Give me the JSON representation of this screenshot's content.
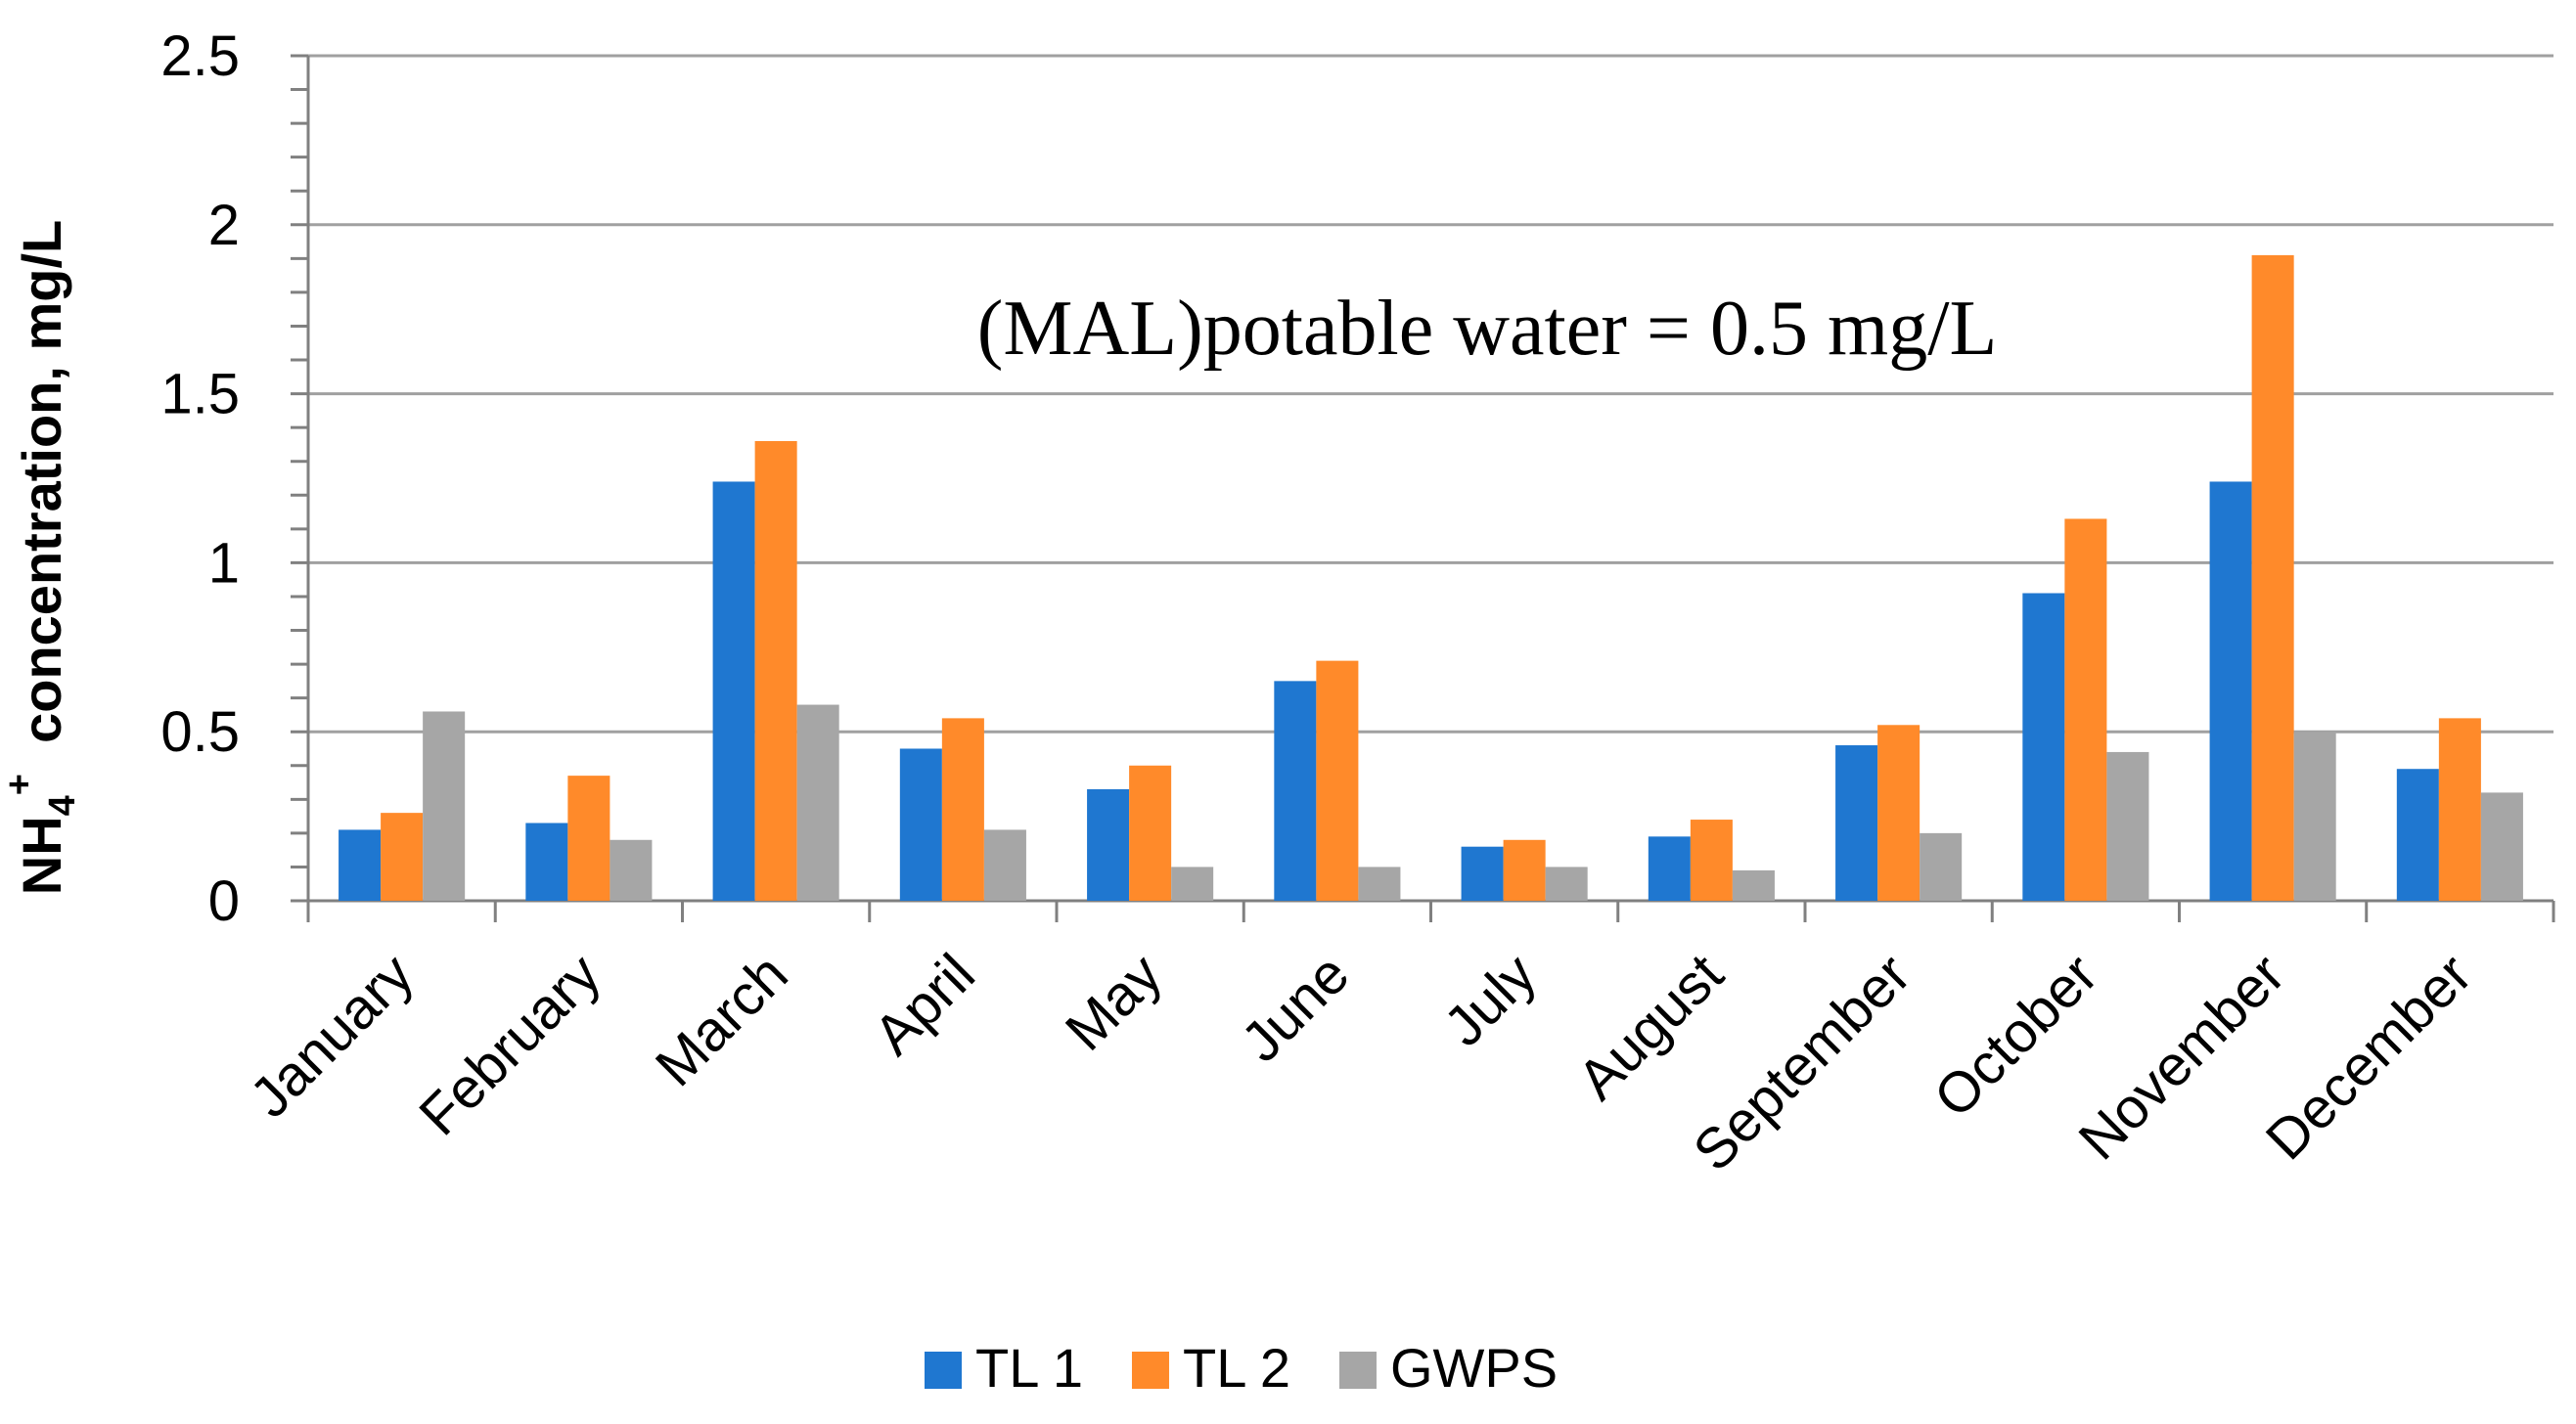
{
  "chart_data": {
    "type": "bar",
    "title": "",
    "xlabel": "",
    "ylabel": {
      "prefix": "NH",
      "subscript": "4",
      "superscript": "+",
      "suffix": "  concentration, mg/L"
    },
    "ylim": [
      0,
      2.5
    ],
    "yticks": [
      "0",
      "0.5",
      "1",
      "1.5",
      "2",
      "2.5"
    ],
    "grid": true,
    "legend_position": "bottom",
    "annotation": "(MAL)potable water = 0.5 mg/L",
    "categories": [
      "January",
      "February",
      "March",
      "April",
      "May",
      "June",
      "July",
      "August",
      "September",
      "October",
      "November",
      "December"
    ],
    "series": [
      {
        "name": "TL 1",
        "color": "#1f77d0",
        "values": [
          0.21,
          0.23,
          1.24,
          0.45,
          0.33,
          0.65,
          0.16,
          0.19,
          0.46,
          0.91,
          1.24,
          0.39
        ]
      },
      {
        "name": "TL 2",
        "color": "#ff8a2a",
        "values": [
          0.26,
          0.37,
          1.36,
          0.54,
          0.4,
          0.71,
          0.18,
          0.24,
          0.52,
          1.13,
          1.91,
          0.54
        ]
      },
      {
        "name": "GWPS",
        "color": "#a6a6a6",
        "values": [
          0.56,
          0.18,
          0.58,
          0.21,
          0.1,
          0.1,
          0.1,
          0.09,
          0.2,
          0.44,
          0.5,
          0.32
        ]
      }
    ]
  }
}
